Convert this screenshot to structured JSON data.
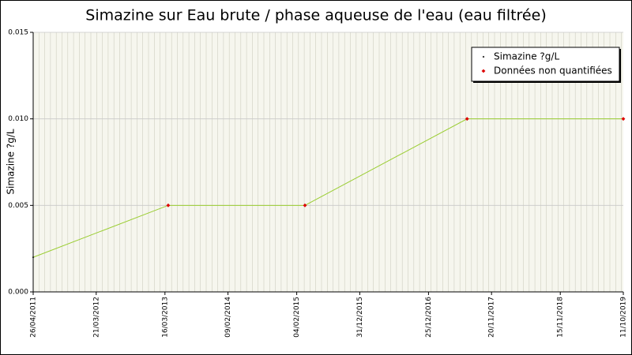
{
  "chart_data": {
    "type": "line",
    "title": "Simazine sur Eau brute / phase aqueuse de l'eau (eau filtrée)",
    "y_label": "Simazine ?g/L",
    "x": [
      "2011-04-26",
      "2013-04-02",
      "2015-03-19",
      "2017-07-15",
      "2019-10-11"
    ],
    "series": [
      {
        "name": "Simazine ?g/L",
        "color": "#000000",
        "line_color": "#9acd32",
        "values": [
          0.002,
          0.005,
          0.005,
          0.01,
          0.01
        ]
      },
      {
        "name": "Données non quantifiées",
        "color": "#dd0000",
        "values": [
          null,
          0.005,
          0.005,
          0.01,
          0.01
        ]
      }
    ],
    "xlim": [
      "2011-04-26",
      "2019-10-11"
    ],
    "xticks": [
      {
        "value": "2011-04-26",
        "label": "26/04/2011"
      },
      {
        "value": "2012-03-21",
        "label": "21/03/2012"
      },
      {
        "value": "2013-03-16",
        "label": "16/03/2013"
      },
      {
        "value": "2014-02-09",
        "label": "09/02/2014"
      },
      {
        "value": "2015-02-04",
        "label": "04/02/2015"
      },
      {
        "value": "2015-12-31",
        "label": "31/12/2015"
      },
      {
        "value": "2016-12-25",
        "label": "25/12/2016"
      },
      {
        "value": "2017-11-20",
        "label": "20/11/2017"
      },
      {
        "value": "2018-11-15",
        "label": "15/11/2018"
      },
      {
        "value": "2019-10-11",
        "label": "11/10/2019"
      }
    ],
    "ylim": [
      0,
      0.015
    ],
    "yticks": [
      {
        "value": 0,
        "label": "0.000"
      },
      {
        "value": 0.005,
        "label": "0.005"
      },
      {
        "value": 0.01,
        "label": "0.010"
      },
      {
        "value": 0.015,
        "label": "0.015"
      }
    ],
    "grid": true,
    "legend": "top-right"
  }
}
